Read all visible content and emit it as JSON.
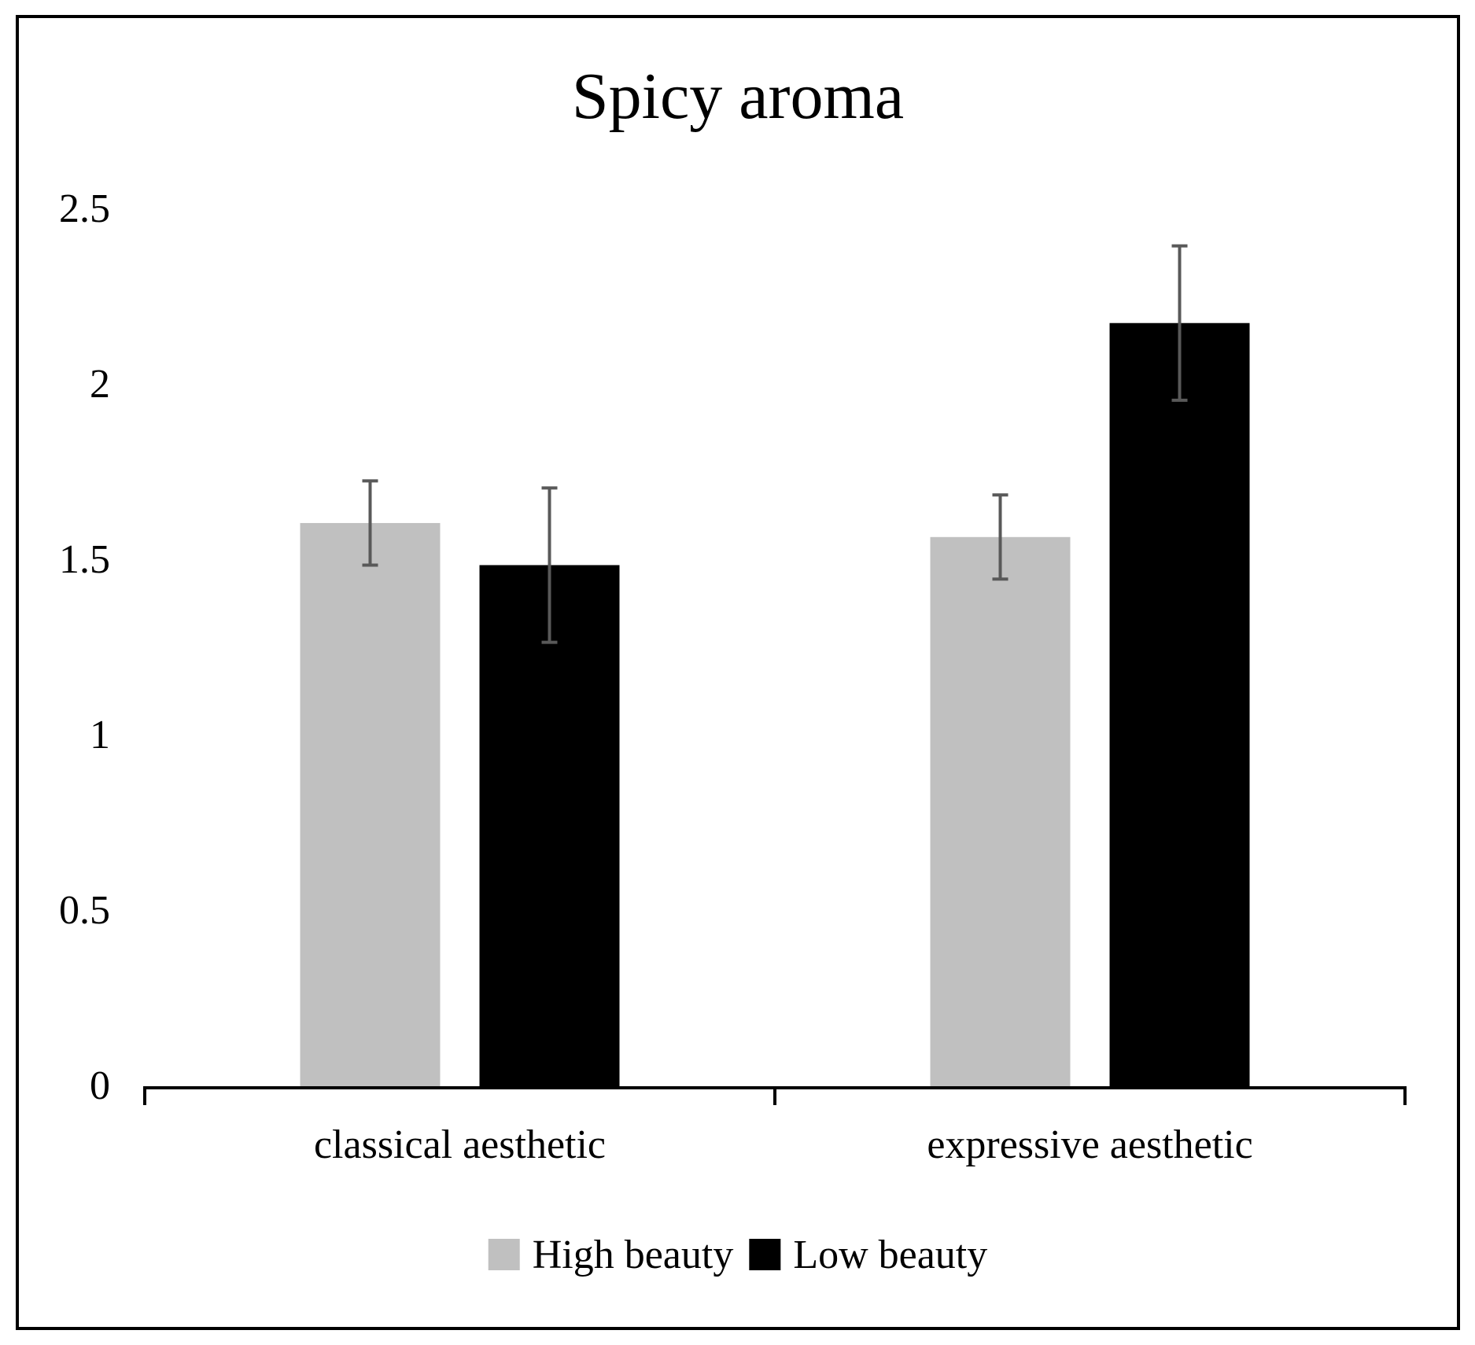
{
  "chart_data": {
    "type": "bar",
    "title": "Spicy aroma",
    "xlabel": "",
    "ylabel": "",
    "categories": [
      "classical aesthetic",
      "expressive aesthetic"
    ],
    "series": [
      {
        "name": "High beauty",
        "values": [
          1.61,
          1.57
        ],
        "errors": [
          0.12,
          0.12
        ],
        "color": "#c0c0c0"
      },
      {
        "name": "Low beauty",
        "values": [
          1.49,
          2.18
        ],
        "errors": [
          0.22,
          0.22
        ],
        "color": "#000000"
      }
    ],
    "ylim": [
      0,
      2.5
    ],
    "y_ticks": [
      "0",
      "0.5",
      "1",
      "1.5",
      "2",
      "2.5"
    ],
    "grid": false,
    "legend_position": "bottom",
    "error_bar_color": "#595959"
  }
}
